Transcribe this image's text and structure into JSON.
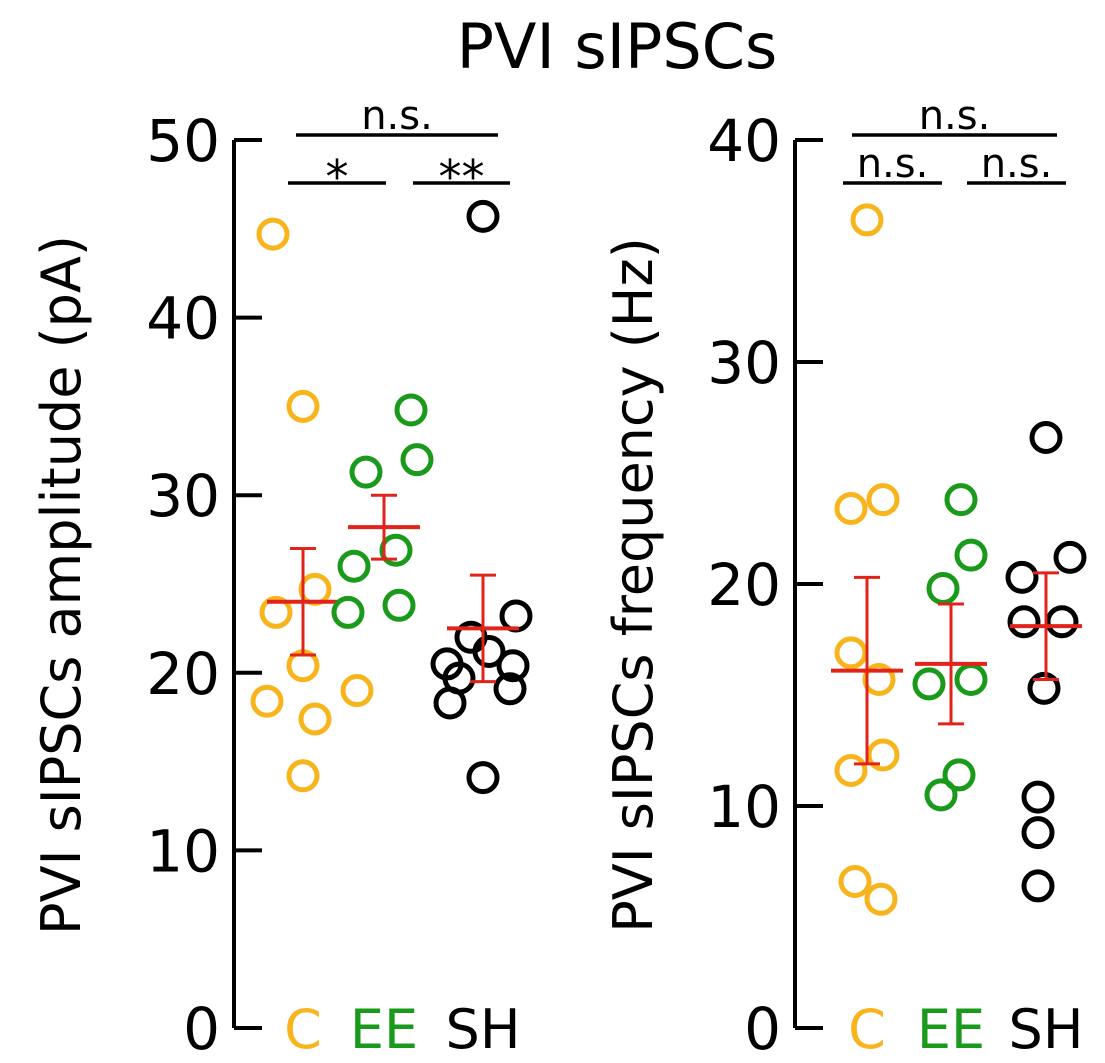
{
  "title": "PVI sIPSCs",
  "colors": {
    "C": "#f8b41c",
    "EE": "#1a9a1a",
    "SH": "#000000",
    "mean": "#e2231a",
    "axis": "#000000"
  },
  "chart_data": [
    {
      "type": "scatter",
      "ylabel": "PVI sIPSCs amplitude (pA)",
      "ylim": [
        0,
        50
      ],
      "yticks": [
        "0",
        "10",
        "20",
        "30",
        "40",
        "50"
      ],
      "categories": [
        "C",
        "EE",
        "SH"
      ],
      "series": [
        {
          "name": "C",
          "color_key": "C",
          "points": [
            {
              "offset": -0.5,
              "y": 44.7
            },
            {
              "offset": 0,
              "y": 35.0
            },
            {
              "offset": 0.2,
              "y": 24.7
            },
            {
              "offset": -0.45,
              "y": 23.4
            },
            {
              "offset": 0,
              "y": 20.4
            },
            {
              "offset": 0.9,
              "y": 19.0
            },
            {
              "offset": -0.6,
              "y": 18.4
            },
            {
              "offset": 0.2,
              "y": 17.4
            },
            {
              "offset": 0,
              "y": 14.2
            }
          ],
          "mean": 24.0,
          "err": 3.0
        },
        {
          "name": "EE",
          "color_key": "EE",
          "points": [
            {
              "offset": 0.45,
              "y": 34.8
            },
            {
              "offset": -0.3,
              "y": 31.3
            },
            {
              "offset": 0.55,
              "y": 32.0
            },
            {
              "offset": 0.2,
              "y": 26.9
            },
            {
              "offset": -0.5,
              "y": 26.0
            },
            {
              "offset": -0.6,
              "y": 23.4
            },
            {
              "offset": 0.25,
              "y": 23.8
            }
          ],
          "mean": 28.2,
          "err": 1.8
        },
        {
          "name": "SH",
          "color_key": "SH",
          "points": [
            {
              "offset": 0,
              "y": 45.7
            },
            {
              "offset": 0.55,
              "y": 23.2
            },
            {
              "offset": -0.2,
              "y": 22.0
            },
            {
              "offset": 0.1,
              "y": 21.2
            },
            {
              "offset": -0.6,
              "y": 20.5
            },
            {
              "offset": 0.5,
              "y": 20.4
            },
            {
              "offset": -0.4,
              "y": 19.7
            },
            {
              "offset": 0.45,
              "y": 19.1
            },
            {
              "offset": -0.55,
              "y": 18.3
            },
            {
              "offset": 0,
              "y": 14.1
            }
          ],
          "mean": 22.5,
          "err": 3.0
        }
      ],
      "significance": [
        {
          "from": "C",
          "to": "SH",
          "label": "n.s.",
          "level": 2
        },
        {
          "from": "C",
          "to": "EE",
          "label": "*",
          "level": 1
        },
        {
          "from": "EE",
          "to": "SH",
          "label": "**",
          "level": 1
        }
      ]
    },
    {
      "type": "scatter",
      "ylabel": "PVI sIPSCs frequency (Hz)",
      "ylim": [
        0,
        40
      ],
      "yticks": [
        "0",
        "10",
        "20",
        "30",
        "40"
      ],
      "categories": [
        "C",
        "EE",
        "SH"
      ],
      "series": [
        {
          "name": "C",
          "color_key": "C",
          "points": [
            {
              "offset": 0,
              "y": 36.4
            },
            {
              "offset": 0.4,
              "y": 23.8
            },
            {
              "offset": -0.4,
              "y": 23.4
            },
            {
              "offset": -0.4,
              "y": 16.9
            },
            {
              "offset": 0.3,
              "y": 15.7
            },
            {
              "offset": 0.4,
              "y": 12.3
            },
            {
              "offset": -0.4,
              "y": 11.6
            },
            {
              "offset": -0.3,
              "y": 6.6
            },
            {
              "offset": 0.35,
              "y": 5.8
            }
          ],
          "mean": 16.1,
          "err": 4.2
        },
        {
          "name": "EE",
          "color_key": "EE",
          "points": [
            {
              "offset": 0.25,
              "y": 23.8
            },
            {
              "offset": 0.5,
              "y": 21.3
            },
            {
              "offset": -0.2,
              "y": 19.8
            },
            {
              "offset": -0.55,
              "y": 15.5
            },
            {
              "offset": 0.5,
              "y": 15.7
            },
            {
              "offset": 0.2,
              "y": 11.4
            },
            {
              "offset": -0.25,
              "y": 10.5
            }
          ],
          "mean": 16.4,
          "err": 2.7
        },
        {
          "name": "SH",
          "color_key": "SH",
          "points": [
            {
              "offset": 0,
              "y": 26.6
            },
            {
              "offset": 0.6,
              "y": 21.2
            },
            {
              "offset": -0.6,
              "y": 20.3
            },
            {
              "offset": -0.55,
              "y": 18.3
            },
            {
              "offset": 0.4,
              "y": 18.3
            },
            {
              "offset": -0.05,
              "y": 15.3
            },
            {
              "offset": -0.2,
              "y": 10.4
            },
            {
              "offset": -0.2,
              "y": 8.8
            },
            {
              "offset": -0.2,
              "y": 6.4
            }
          ],
          "mean": 18.1,
          "err": 2.4
        }
      ],
      "significance": [
        {
          "from": "C",
          "to": "SH",
          "label": "n.s.",
          "level": 2
        },
        {
          "from": "C",
          "to": "EE",
          "label": "n.s.",
          "level": 1
        },
        {
          "from": "EE",
          "to": "SH",
          "label": "n.s.",
          "level": 1
        }
      ]
    }
  ]
}
